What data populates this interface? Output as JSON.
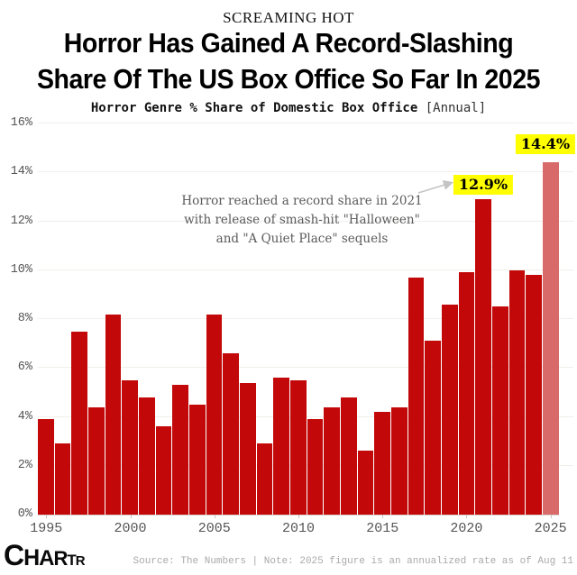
{
  "header": {
    "kicker": "SCREAMING HOT",
    "title_line1": "Horror Has Gained A Record-Slashing",
    "title_line2": "Share Of The US Box Office So Far In 2025",
    "subtitle_bold": "Horror Genre % Share of Domestic Box Office",
    "subtitle_note": "[Annual]"
  },
  "chart_data": {
    "type": "bar",
    "title": "Horror Genre % Share of Domestic Box Office [Annual]",
    "categories": [
      1995,
      1996,
      1997,
      1998,
      1999,
      2000,
      2001,
      2002,
      2003,
      2004,
      2005,
      2006,
      2007,
      2008,
      2009,
      2010,
      2011,
      2012,
      2013,
      2014,
      2015,
      2016,
      2017,
      2018,
      2019,
      2020,
      2021,
      2022,
      2023,
      2024,
      2025
    ],
    "values": [
      3.9,
      2.9,
      7.5,
      4.4,
      8.2,
      5.5,
      4.8,
      3.6,
      5.3,
      4.5,
      8.2,
      6.6,
      5.4,
      2.9,
      5.6,
      5.5,
      3.9,
      4.4,
      4.8,
      2.6,
      4.2,
      4.4,
      9.7,
      7.1,
      8.6,
      9.9,
      12.9,
      8.5,
      10.0,
      9.8,
      14.4
    ],
    "xlabel": "",
    "ylabel": "",
    "ylim": [
      0,
      16
    ],
    "y_tick_step": 2,
    "y_ticks": [
      "0%",
      "2%",
      "4%",
      "6%",
      "8%",
      "10%",
      "12%",
      "14%",
      "16%"
    ],
    "x_ticks": [
      "1995",
      "2000",
      "2005",
      "2010",
      "2015",
      "2020",
      "2025"
    ],
    "grid": "horizontal",
    "legend": "none",
    "bar_color": "#c20808",
    "bar_color_2025": "#d96a6a",
    "highlight_labels": [
      {
        "year": 2021,
        "text": "12.9%"
      },
      {
        "year": 2025,
        "text": "14.4%"
      }
    ]
  },
  "annotation": {
    "line1": "Horror reached a record share in 2021",
    "line2": "with release of smash-hit \"Halloween\"",
    "line3": "and \"A Quiet Place\" sequels"
  },
  "labels": {
    "label_2021": "12.9%",
    "label_2025": "14.4%"
  },
  "colors": {
    "bar": "#c20808",
    "bar_2025": "#d96a6a",
    "highlight_bg": "#ffff00",
    "annotation_arrow": "#c4c4c4"
  },
  "footer": {
    "logo": "CHARTR",
    "source": "Source: The Numbers | Note: 2025 figure is an annualized rate as of Aug 11"
  }
}
